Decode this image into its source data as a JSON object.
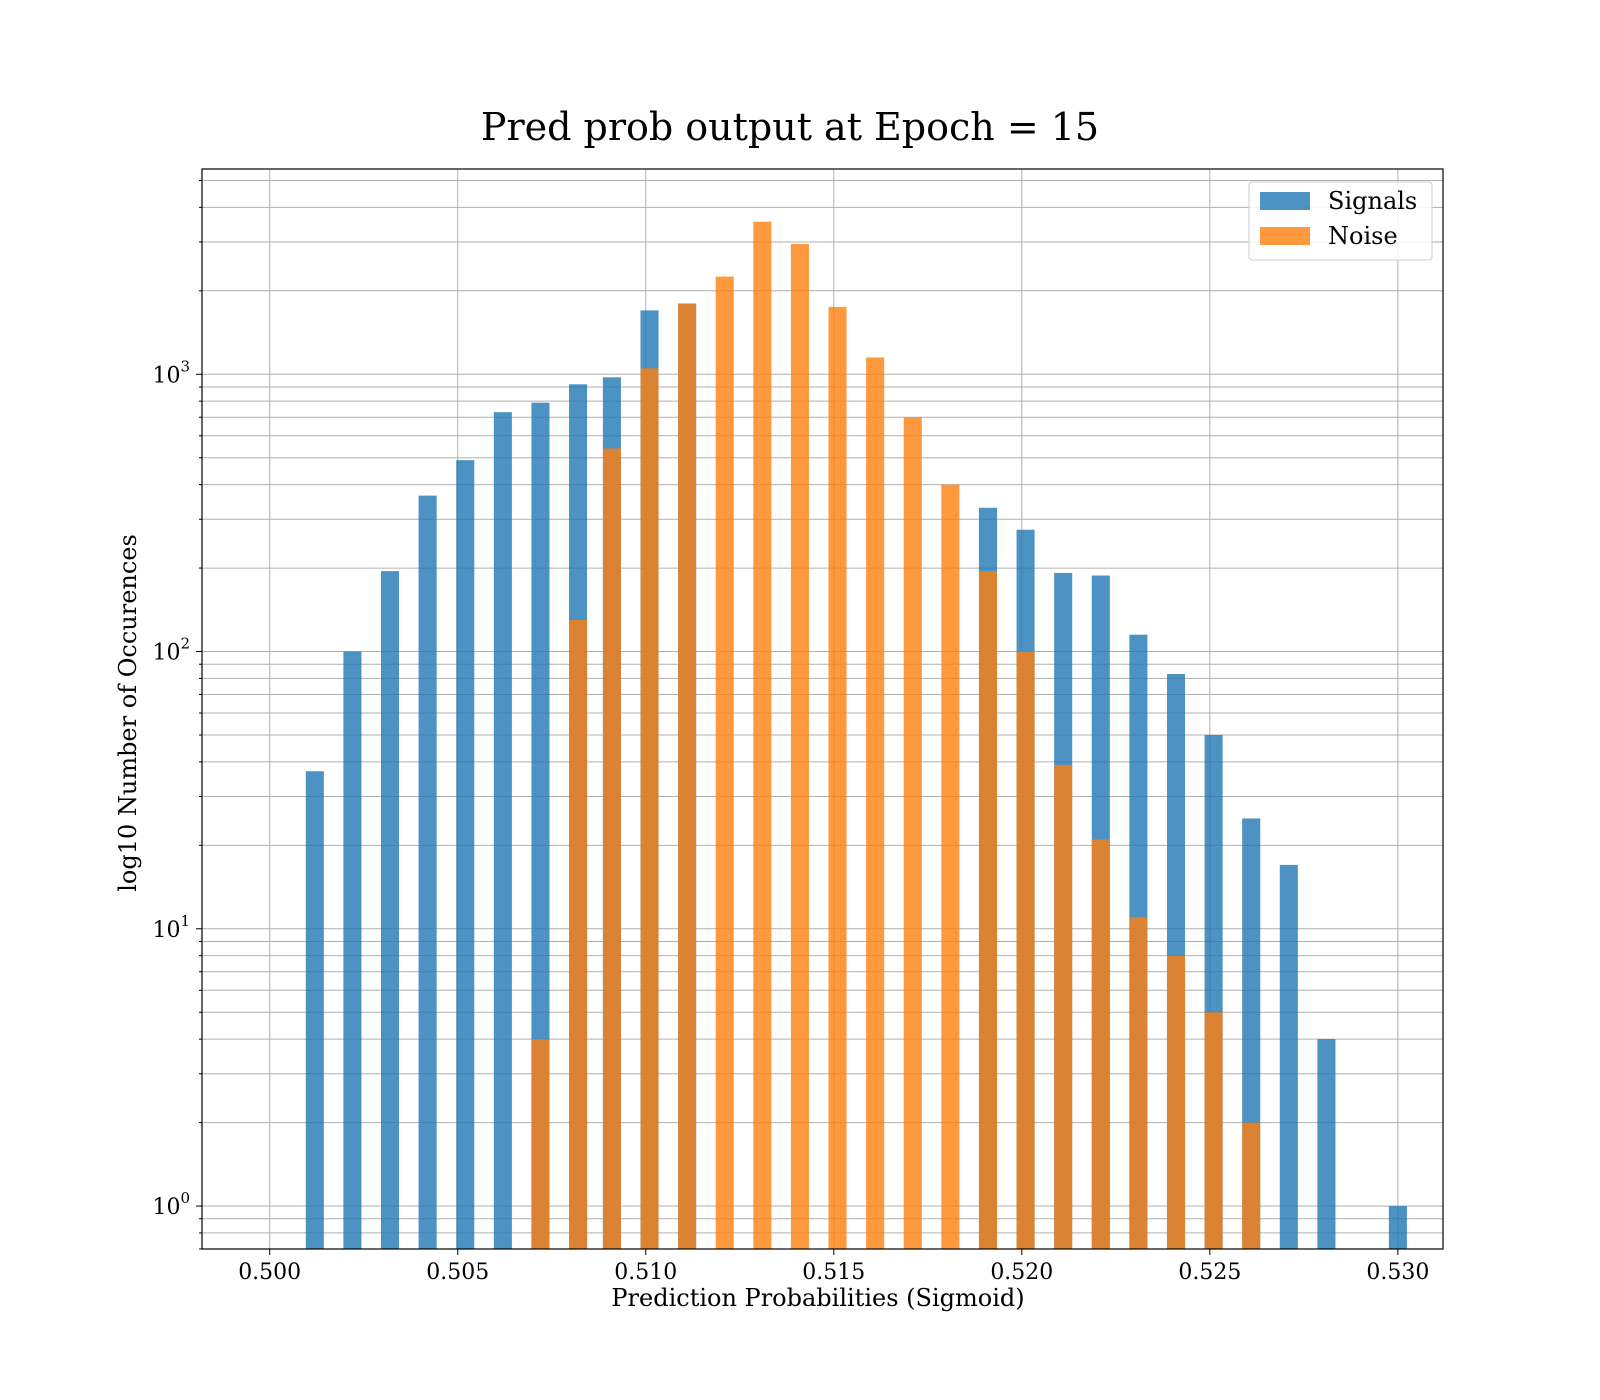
{
  "chart_data": {
    "type": "bar",
    "title": "Pred prob output at Epoch = 15",
    "xlabel": "Prediction Probabilities (Sigmoid)",
    "ylabel": "log10 Number of Occurences",
    "yscale": "log",
    "xlim": [
      0.4982,
      0.5312
    ],
    "ylim": [
      0.7,
      5500
    ],
    "grid": true,
    "legend_placement": "top-right",
    "x_ticks": [
      "0.500",
      "0.505",
      "0.510",
      "0.515",
      "0.520",
      "0.525",
      "0.530"
    ],
    "y_ticks": [
      {
        "base": "10",
        "exp": "0",
        "value": 1
      },
      {
        "base": "10",
        "exp": "1",
        "value": 10
      },
      {
        "base": "10",
        "exp": "2",
        "value": 100
      },
      {
        "base": "10",
        "exp": "3",
        "value": 1000
      }
    ],
    "bar_width": 0.00048,
    "series": [
      {
        "name": "Signals",
        "color": "#1f77b4",
        "x": [
          0.5012,
          0.5022,
          0.5032,
          0.5042,
          0.5052,
          0.5062,
          0.5072,
          0.5082,
          0.5091,
          0.5101,
          0.5111,
          0.5191,
          0.5201,
          0.5211,
          0.5221,
          0.5231,
          0.5241,
          0.5251,
          0.5261,
          0.5271,
          0.5281,
          0.53
        ],
        "values": [
          37,
          100,
          195,
          365,
          490,
          730,
          790,
          920,
          975,
          1700,
          1800,
          330,
          275,
          192,
          188,
          115,
          83,
          50,
          25,
          17,
          4,
          1
        ]
      },
      {
        "name": "Noise",
        "color": "#ff7f0e",
        "x": [
          0.5072,
          0.5082,
          0.5091,
          0.5101,
          0.5111,
          0.5121,
          0.5131,
          0.5141,
          0.5151,
          0.5161,
          0.5171,
          0.5181,
          0.5191,
          0.5201,
          0.5211,
          0.5221,
          0.5231,
          0.5241,
          0.5251,
          0.5261
        ],
        "values": [
          4,
          130,
          540,
          1050,
          1800,
          2250,
          3550,
          2950,
          1750,
          1150,
          700,
          400,
          195,
          100,
          39,
          21,
          11,
          8,
          5,
          2
        ]
      }
    ]
  }
}
